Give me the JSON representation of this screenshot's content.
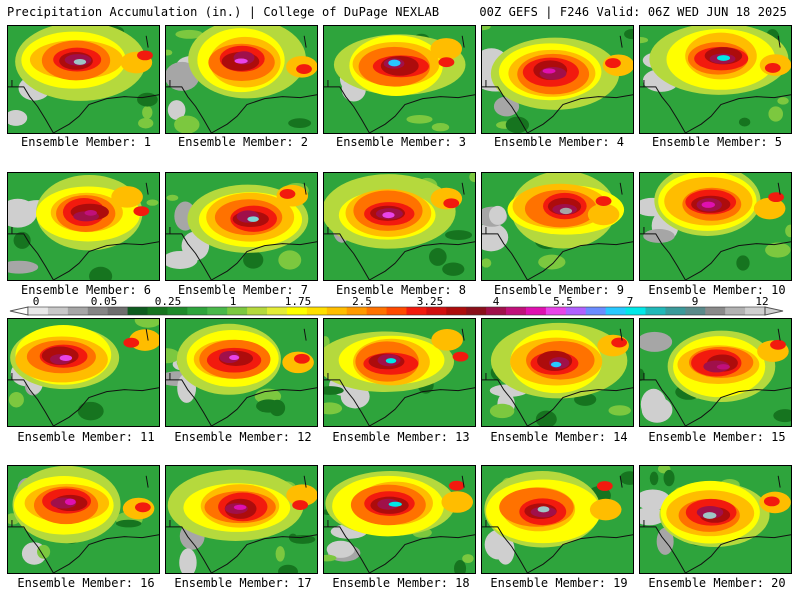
{
  "header": {
    "left": "Precipitation Accumulation (in.) | College of DuPage NEXLAB",
    "right": "00Z GEFS | F246 Valid: 06Z WED JUN 18 2025"
  },
  "colorbar": {
    "ticks": [
      "0",
      "0.05",
      "0.25",
      "1",
      "1.75",
      "2.5",
      "3.25",
      "4",
      "5.5",
      "7",
      "9",
      "12"
    ],
    "colors": [
      "#e8e8e8",
      "#c8c8c8",
      "#a6a6a6",
      "#858585",
      "#6e6e6e",
      "#0e5b1f",
      "#16741f",
      "#1e8a2b",
      "#2ea43c",
      "#49b84a",
      "#7cc83f",
      "#b5d93d",
      "#e4ec37",
      "#ffff00",
      "#ffdf00",
      "#ffbd00",
      "#ff9a00",
      "#ff7200",
      "#ff4a00",
      "#f21a0e",
      "#d10f0f",
      "#ad0c0c",
      "#8a0f1a",
      "#a0104a",
      "#c0107a",
      "#df10b0",
      "#e844e8",
      "#b060ff",
      "#6a8cff",
      "#28c8ff",
      "#00e8e8",
      "#20b8b8",
      "#3a9a9a",
      "#5a8a8a",
      "#8a8a8a",
      "#b2b2b2",
      "#cfcfcf"
    ]
  },
  "panels": [
    {
      "label": "Ensemble Member: 1",
      "peak": "#9ec6c6"
    },
    {
      "label": "Ensemble Member: 2",
      "peak": "#e844e8"
    },
    {
      "label": "Ensemble Member: 3",
      "peak": "#28c8ff"
    },
    {
      "label": "Ensemble Member: 4",
      "peak": "#df10b0"
    },
    {
      "label": "Ensemble Member: 5",
      "peak": "#00e8e8"
    },
    {
      "label": "Ensemble Member: 6",
      "peak": "#c0107a"
    },
    {
      "label": "Ensemble Member: 7",
      "peak": "#7fd6d6"
    },
    {
      "label": "Ensemble Member: 8",
      "peak": "#e844e8"
    },
    {
      "label": "Ensemble Member: 9",
      "peak": "#a6a6a6"
    },
    {
      "label": "Ensemble Member: 10",
      "peak": "#df10b0"
    },
    {
      "label": "Ensemble Member: 11",
      "peak": "#e844e8"
    },
    {
      "label": "Ensemble Member: 12",
      "peak": "#e844e8"
    },
    {
      "label": "Ensemble Member: 13",
      "peak": "#00e8e8"
    },
    {
      "label": "Ensemble Member: 14",
      "peak": "#28c8ff"
    },
    {
      "label": "Ensemble Member: 15",
      "peak": "#c0107a"
    },
    {
      "label": "Ensemble Member: 16",
      "peak": "#df10b0"
    },
    {
      "label": "Ensemble Member: 17",
      "peak": "#df10b0"
    },
    {
      "label": "Ensemble Member: 18",
      "peak": "#00e8e8"
    },
    {
      "label": "Ensemble Member: 19",
      "peak": "#9ec6c6"
    },
    {
      "label": "Ensemble Member: 20",
      "peak": "#9ec6c6"
    }
  ]
}
